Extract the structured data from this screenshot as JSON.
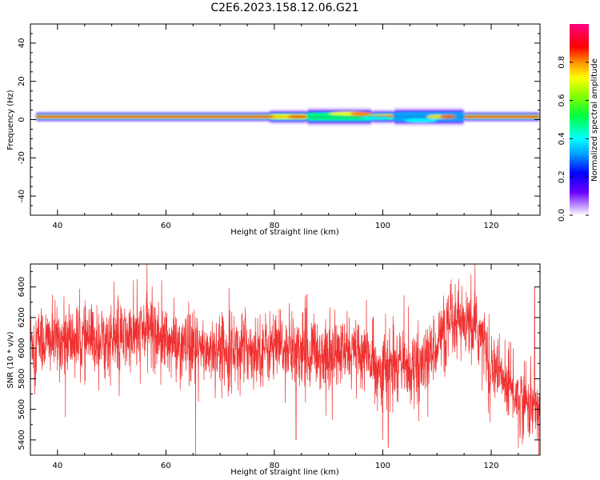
{
  "title": "C2E6.2023.158.12.06.G21",
  "chart_data": [
    {
      "type": "heatmap",
      "xlabel": "Height of straight line (km)",
      "ylabel": "Frequency (Hz)",
      "xlim": [
        35,
        129
      ],
      "ylim": [
        -50,
        50
      ],
      "xticks": [
        40,
        60,
        80,
        100,
        120
      ],
      "yticks": [
        -40,
        -20,
        0,
        20,
        40
      ],
      "colorbar": {
        "label": "Normalized spectral amplitude",
        "range": [
          0,
          1
        ],
        "ticks": [
          0.0,
          0.2,
          0.4,
          0.6,
          0.8
        ]
      },
      "ridge": {
        "x_start": 36,
        "x_end": 129,
        "frequency_hz": 1.5
      },
      "features": [
        {
          "x_start": 36,
          "x_end": 80,
          "half_width_hz": 3,
          "peak": 1.0
        },
        {
          "x_start": 79,
          "x_end": 86,
          "half_width_hz": 4,
          "peak": 0.75
        },
        {
          "x_start": 86,
          "x_end": 98,
          "half_width_hz": 5,
          "peak": 0.55
        },
        {
          "x_start": 98,
          "x_end": 102,
          "half_width_hz": 4,
          "peak": 1.0
        },
        {
          "x_start": 102,
          "x_end": 115,
          "half_width_hz": 5,
          "peak": 0.45
        },
        {
          "x_start": 115,
          "x_end": 129,
          "half_width_hz": 3,
          "peak": 1.0
        }
      ]
    },
    {
      "type": "line",
      "xlabel": "Height of straight line (km)",
      "ylabel": "SNR (10 * v/v)",
      "xlim": [
        35,
        129
      ],
      "ylim": [
        5300,
        6550
      ],
      "xticks": [
        40,
        60,
        80,
        100,
        120
      ],
      "yticks": [
        5400,
        5600,
        5800,
        6000,
        6200,
        6400
      ],
      "color": "#f03030",
      "trend": [
        [
          35,
          6050
        ],
        [
          40,
          6050
        ],
        [
          45,
          6050
        ],
        [
          50,
          6050
        ],
        [
          55,
          6080
        ],
        [
          57,
          6150
        ],
        [
          60,
          6050
        ],
        [
          65,
          5980
        ],
        [
          70,
          6000
        ],
        [
          75,
          6000
        ],
        [
          80,
          6000
        ],
        [
          85,
          5990
        ],
        [
          90,
          5950
        ],
        [
          95,
          5980
        ],
        [
          98,
          5920
        ],
        [
          100,
          5850
        ],
        [
          103,
          5900
        ],
        [
          106,
          5880
        ],
        [
          108,
          5900
        ],
        [
          110,
          6050
        ],
        [
          112,
          6120
        ],
        [
          115,
          6150
        ],
        [
          118,
          6100
        ],
        [
          120,
          5900
        ],
        [
          123,
          5750
        ],
        [
          126,
          5650
        ],
        [
          129,
          5600
        ]
      ],
      "noise_amplitude": 150,
      "spikes": [
        [
          56.5,
          6550
        ],
        [
          65.5,
          5300
        ],
        [
          66,
          5650
        ],
        [
          86,
          6350
        ],
        [
          84,
          5400
        ],
        [
          100,
          5400
        ],
        [
          101,
          5350
        ],
        [
          114,
          6450
        ],
        [
          125,
          5350
        ],
        [
          128,
          6400
        ]
      ]
    }
  ]
}
